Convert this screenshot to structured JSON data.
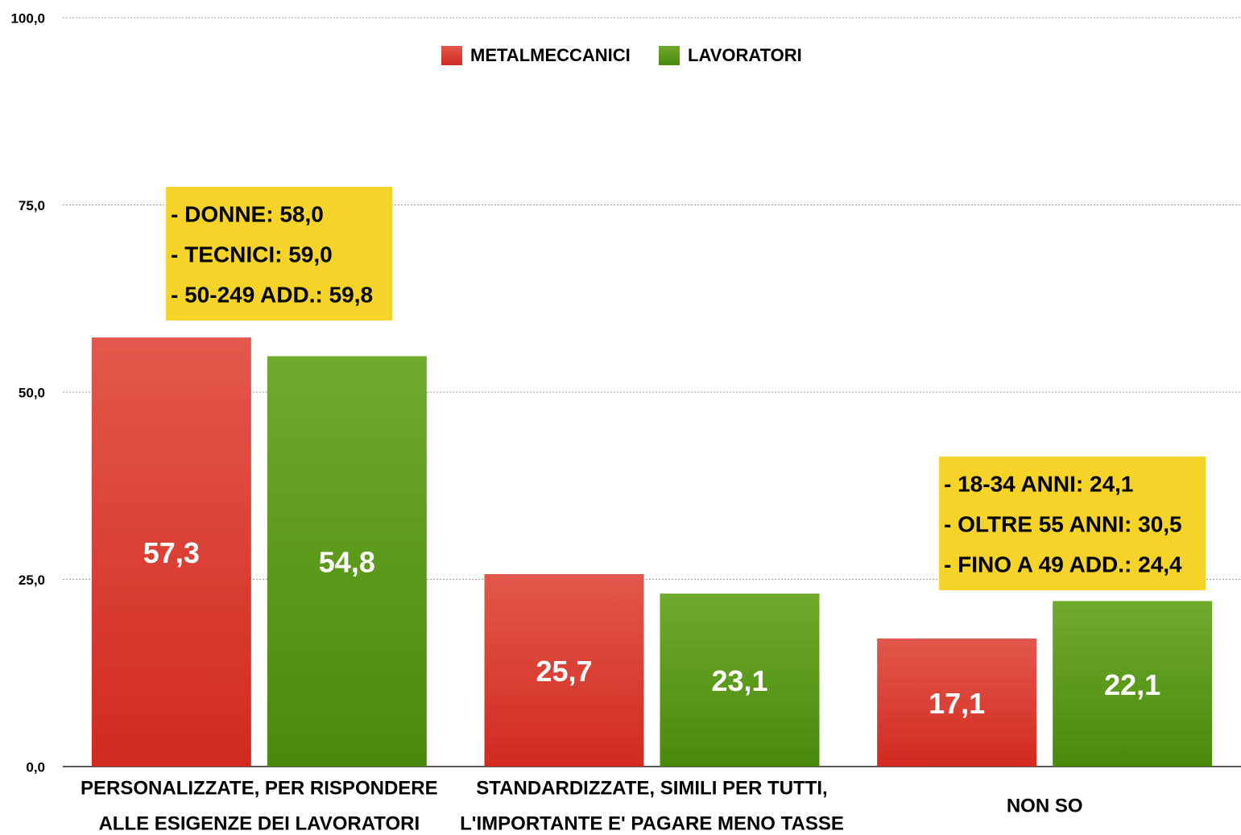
{
  "chart_data": {
    "type": "bar",
    "categories": [
      [
        "PERSONALIZZATE, PER RISPONDERE",
        "ALLE ESIGENZE DEI LAVORATORI"
      ],
      [
        "STANDARDIZZATE, SIMILI PER TUTTI,",
        "L'IMPORTANTE E' PAGARE MENO TASSE"
      ],
      [
        "NON SO"
      ]
    ],
    "series": [
      {
        "name": "METALMECCANICI",
        "color": "#dc3a2e",
        "values": [
          57.3,
          25.7,
          17.1
        ],
        "value_labels": [
          "57,3",
          "25,7",
          "17,1"
        ]
      },
      {
        "name": "LAVORATORI",
        "color": "#5a9a18",
        "values": [
          54.8,
          23.1,
          22.1
        ],
        "value_labels": [
          "54,8",
          "23,1",
          "22,1"
        ]
      }
    ],
    "ylim": [
      0,
      100
    ],
    "yticks": [
      {
        "value": 0,
        "label": "0,0"
      },
      {
        "value": 25,
        "label": "25,0"
      },
      {
        "value": 50,
        "label": "50,0"
      },
      {
        "value": 75,
        "label": "75,0"
      },
      {
        "value": 100,
        "label": "100,0"
      }
    ],
    "grid": true,
    "legend": "top",
    "annotations": [
      {
        "lines": [
          "- DONNE: 58,0",
          "- TECNICI: 59,0",
          "- 50-249 ADD.: 59,8"
        ]
      },
      {
        "lines": [
          "- 18-34 ANNI: 24,1",
          "- OLTRE 55 ANNI: 30,5",
          "- FINO A 49 ADD.: 24,4"
        ]
      }
    ]
  }
}
